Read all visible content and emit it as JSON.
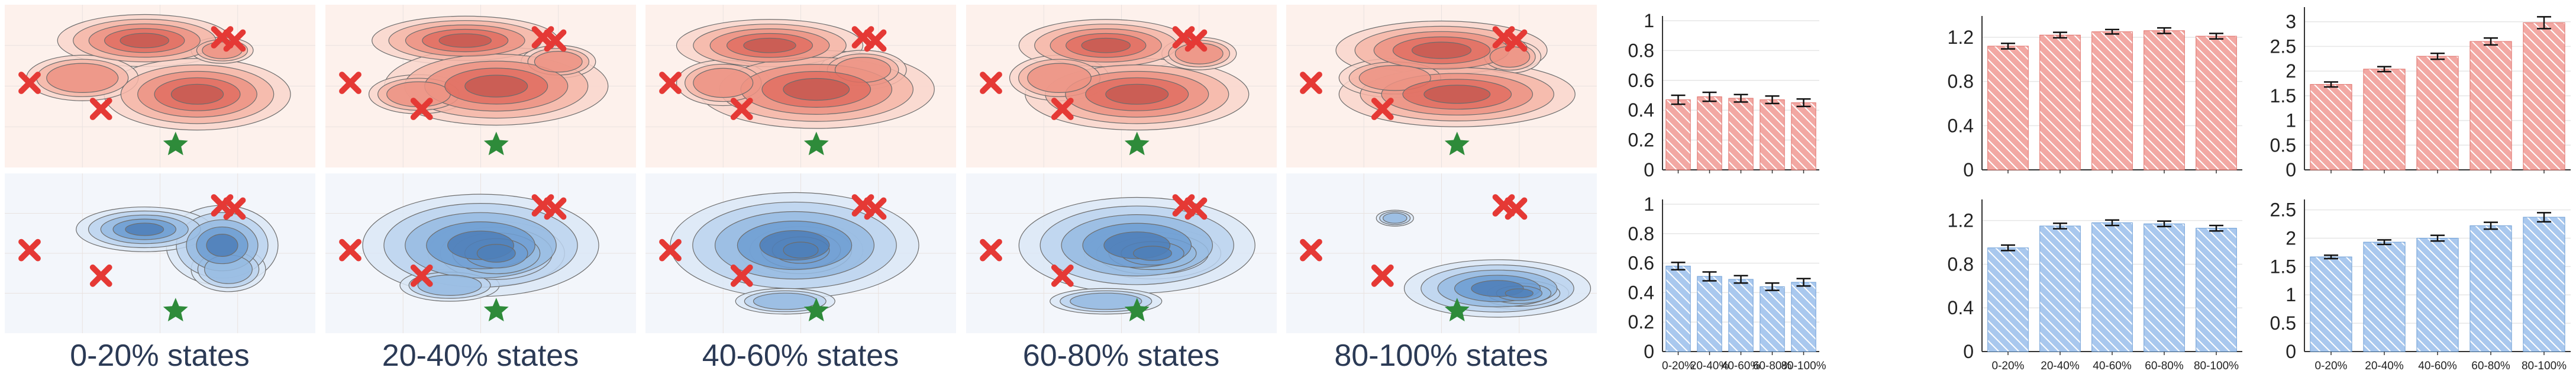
{
  "colors": {
    "red_fill": "#f2a8a3",
    "red_stroke": "#e0706a",
    "blue_fill": "#a9c8ee",
    "blue_stroke": "#6e9fd6",
    "red_panel_bg": "#fdf1ec",
    "blue_panel_bg": "#f3f6fb",
    "marker_x": "#e53935",
    "marker_star": "#2e8b3a",
    "caption_text": "#2b3a55"
  },
  "panels": {
    "captions": [
      "0-20% states",
      "20-40% states",
      "40-60% states",
      "60-80% states",
      "80-100% states"
    ]
  },
  "chart_data": [
    {
      "type": "bar",
      "color": "red",
      "categories": [
        "0-20%",
        "20-40%",
        "40-60%",
        "60-80%",
        "80-100%"
      ],
      "values": [
        0.47,
        0.49,
        0.48,
        0.47,
        0.45
      ],
      "errors": [
        0.03,
        0.03,
        0.025,
        0.025,
        0.025
      ],
      "ylim": [
        0,
        1.0
      ],
      "yticks": [
        0,
        0.2,
        0.4,
        0.6,
        0.8,
        1
      ],
      "ytick_labels": [
        "0",
        "0.2",
        "0.4",
        "0.6",
        "0.8",
        "1"
      ],
      "show_xticks": false
    },
    {
      "type": "bar",
      "color": "blue",
      "categories": [
        "0-20%",
        "20-40%",
        "40-60%",
        "60-80%",
        "80-100%"
      ],
      "values": [
        0.58,
        0.51,
        0.49,
        0.44,
        0.47
      ],
      "errors": [
        0.025,
        0.03,
        0.025,
        0.025,
        0.025
      ],
      "ylim": [
        0,
        1.0
      ],
      "yticks": [
        0,
        0.2,
        0.4,
        0.6,
        0.8,
        1
      ],
      "ytick_labels": [
        "0",
        "0.2",
        "0.4",
        "0.6",
        "0.8",
        "1"
      ],
      "show_xticks": true
    },
    {
      "type": "bar",
      "color": "red",
      "categories": [
        "0-20%",
        "20-40%",
        "40-60%",
        "60-80%",
        "80-100%"
      ],
      "values": [
        1.12,
        1.22,
        1.25,
        1.26,
        1.21
      ],
      "errors": [
        0.025,
        0.025,
        0.02,
        0.025,
        0.025
      ],
      "ylim": [
        0,
        1.35
      ],
      "yticks": [
        0,
        0.4,
        0.8,
        1.2
      ],
      "ytick_labels": [
        "0",
        "0.4",
        "0.8",
        "1.2"
      ],
      "show_xticks": false
    },
    {
      "type": "bar",
      "color": "blue",
      "categories": [
        "0-20%",
        "20-40%",
        "40-60%",
        "60-80%",
        "80-100%"
      ],
      "values": [
        0.95,
        1.15,
        1.18,
        1.17,
        1.13
      ],
      "errors": [
        0.025,
        0.025,
        0.025,
        0.025,
        0.025
      ],
      "ylim": [
        0,
        1.35
      ],
      "yticks": [
        0,
        0.4,
        0.8,
        1.2
      ],
      "ytick_labels": [
        "0",
        "0.4",
        "0.8",
        "1.2"
      ],
      "show_xticks": true
    },
    {
      "type": "bar",
      "color": "red",
      "categories": [
        "0-20%",
        "20-40%",
        "40-60%",
        "60-80%",
        "80-100%"
      ],
      "values": [
        1.73,
        2.04,
        2.3,
        2.6,
        2.98
      ],
      "errors": [
        0.05,
        0.05,
        0.06,
        0.07,
        0.12
      ],
      "ylim": [
        0,
        3.2
      ],
      "yticks": [
        0,
        0.5,
        1,
        1.5,
        2,
        2.5,
        3
      ],
      "ytick_labels": [
        "0",
        "0.5",
        "1",
        "1.5",
        "2",
        "2.5",
        "3"
      ],
      "show_xticks": false
    },
    {
      "type": "bar",
      "color": "blue",
      "categories": [
        "0-20%",
        "20-40%",
        "40-60%",
        "60-80%",
        "80-100%"
      ],
      "values": [
        1.67,
        1.93,
        2.0,
        2.22,
        2.37
      ],
      "errors": [
        0.03,
        0.04,
        0.05,
        0.06,
        0.08
      ],
      "ylim": [
        0,
        2.6
      ],
      "yticks": [
        0,
        0.5,
        1,
        1.5,
        2,
        2.5
      ],
      "ytick_labels": [
        "0",
        "0.5",
        "1",
        "1.5",
        "2",
        "2.5"
      ],
      "show_xticks": true
    }
  ]
}
